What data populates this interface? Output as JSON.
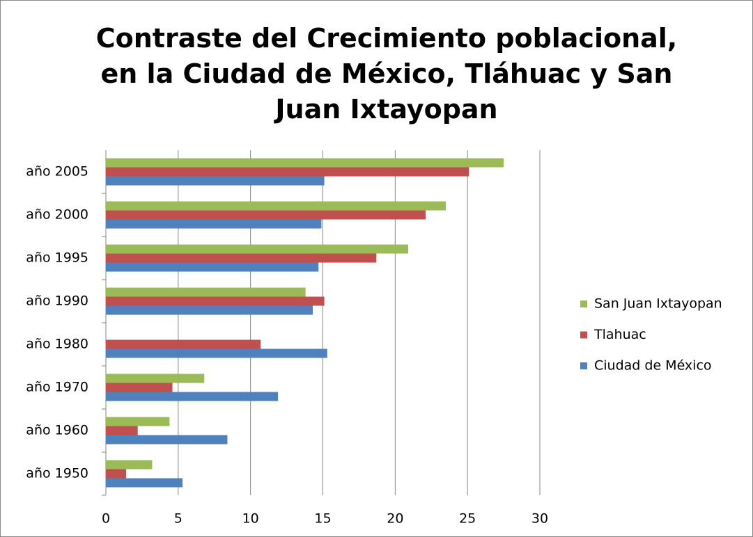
{
  "chart_data": {
    "type": "bar",
    "orientation": "horizontal",
    "title": "Contraste del Crecimiento poblacional, en la Ciudad de México, Tláhuac y San Juan Ixtayopan",
    "categories": [
      "año 1950",
      "año 1960",
      "año 1970",
      "año 1980",
      "año 1990",
      "año 1995",
      "año 2000",
      "año 2005"
    ],
    "series": [
      {
        "name": "Ciudad de México",
        "color": "#4f81bd",
        "values": [
          5.3,
          8.4,
          11.9,
          15.3,
          14.3,
          14.7,
          14.9,
          15.1
        ]
      },
      {
        "name": "Tlahuac",
        "color": "#c0504d",
        "values": [
          1.4,
          2.2,
          4.6,
          10.7,
          15.1,
          18.7,
          22.1,
          25.1
        ]
      },
      {
        "name": "San Juan Ixtayopan",
        "color": "#9bbb59",
        "values": [
          3.2,
          4.4,
          6.8,
          null,
          13.8,
          20.9,
          23.5,
          27.5
        ]
      }
    ],
    "xlim": [
      0,
      30
    ],
    "xticks": [
      0,
      5,
      10,
      15,
      20,
      25,
      30
    ],
    "grid": true,
    "legend": "right"
  }
}
